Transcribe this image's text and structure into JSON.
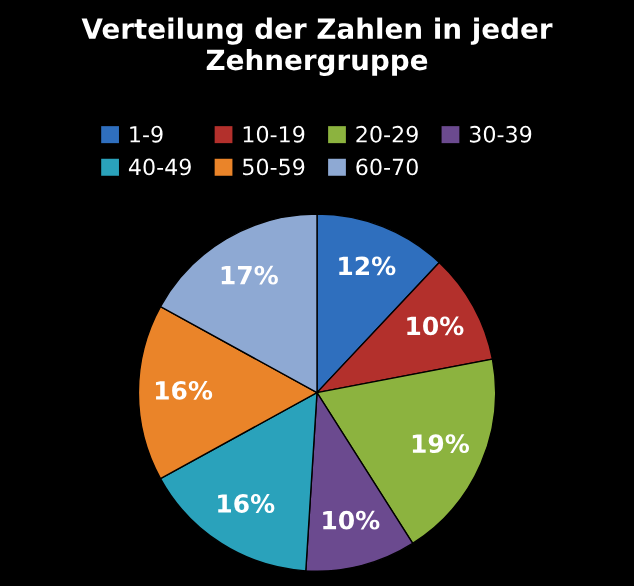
{
  "chart_data": {
    "type": "pie",
    "title": "Verteilung der Zahlen in jeder Zehnergruppe",
    "categories": [
      "1-9",
      "10-19",
      "20-29",
      "30-39",
      "40-49",
      "50-59",
      "60-70"
    ],
    "values": [
      12,
      10,
      19,
      10,
      16,
      16,
      17
    ],
    "value_labels": [
      "12%",
      "10%",
      "19%",
      "10%",
      "16%",
      "16%",
      "17%"
    ],
    "colors": [
      "#2f6fbe",
      "#b3302c",
      "#8cb33f",
      "#6b4a8f",
      "#2aa2bb",
      "#ea8429",
      "#8ea9d3"
    ],
    "legend": "top"
  }
}
